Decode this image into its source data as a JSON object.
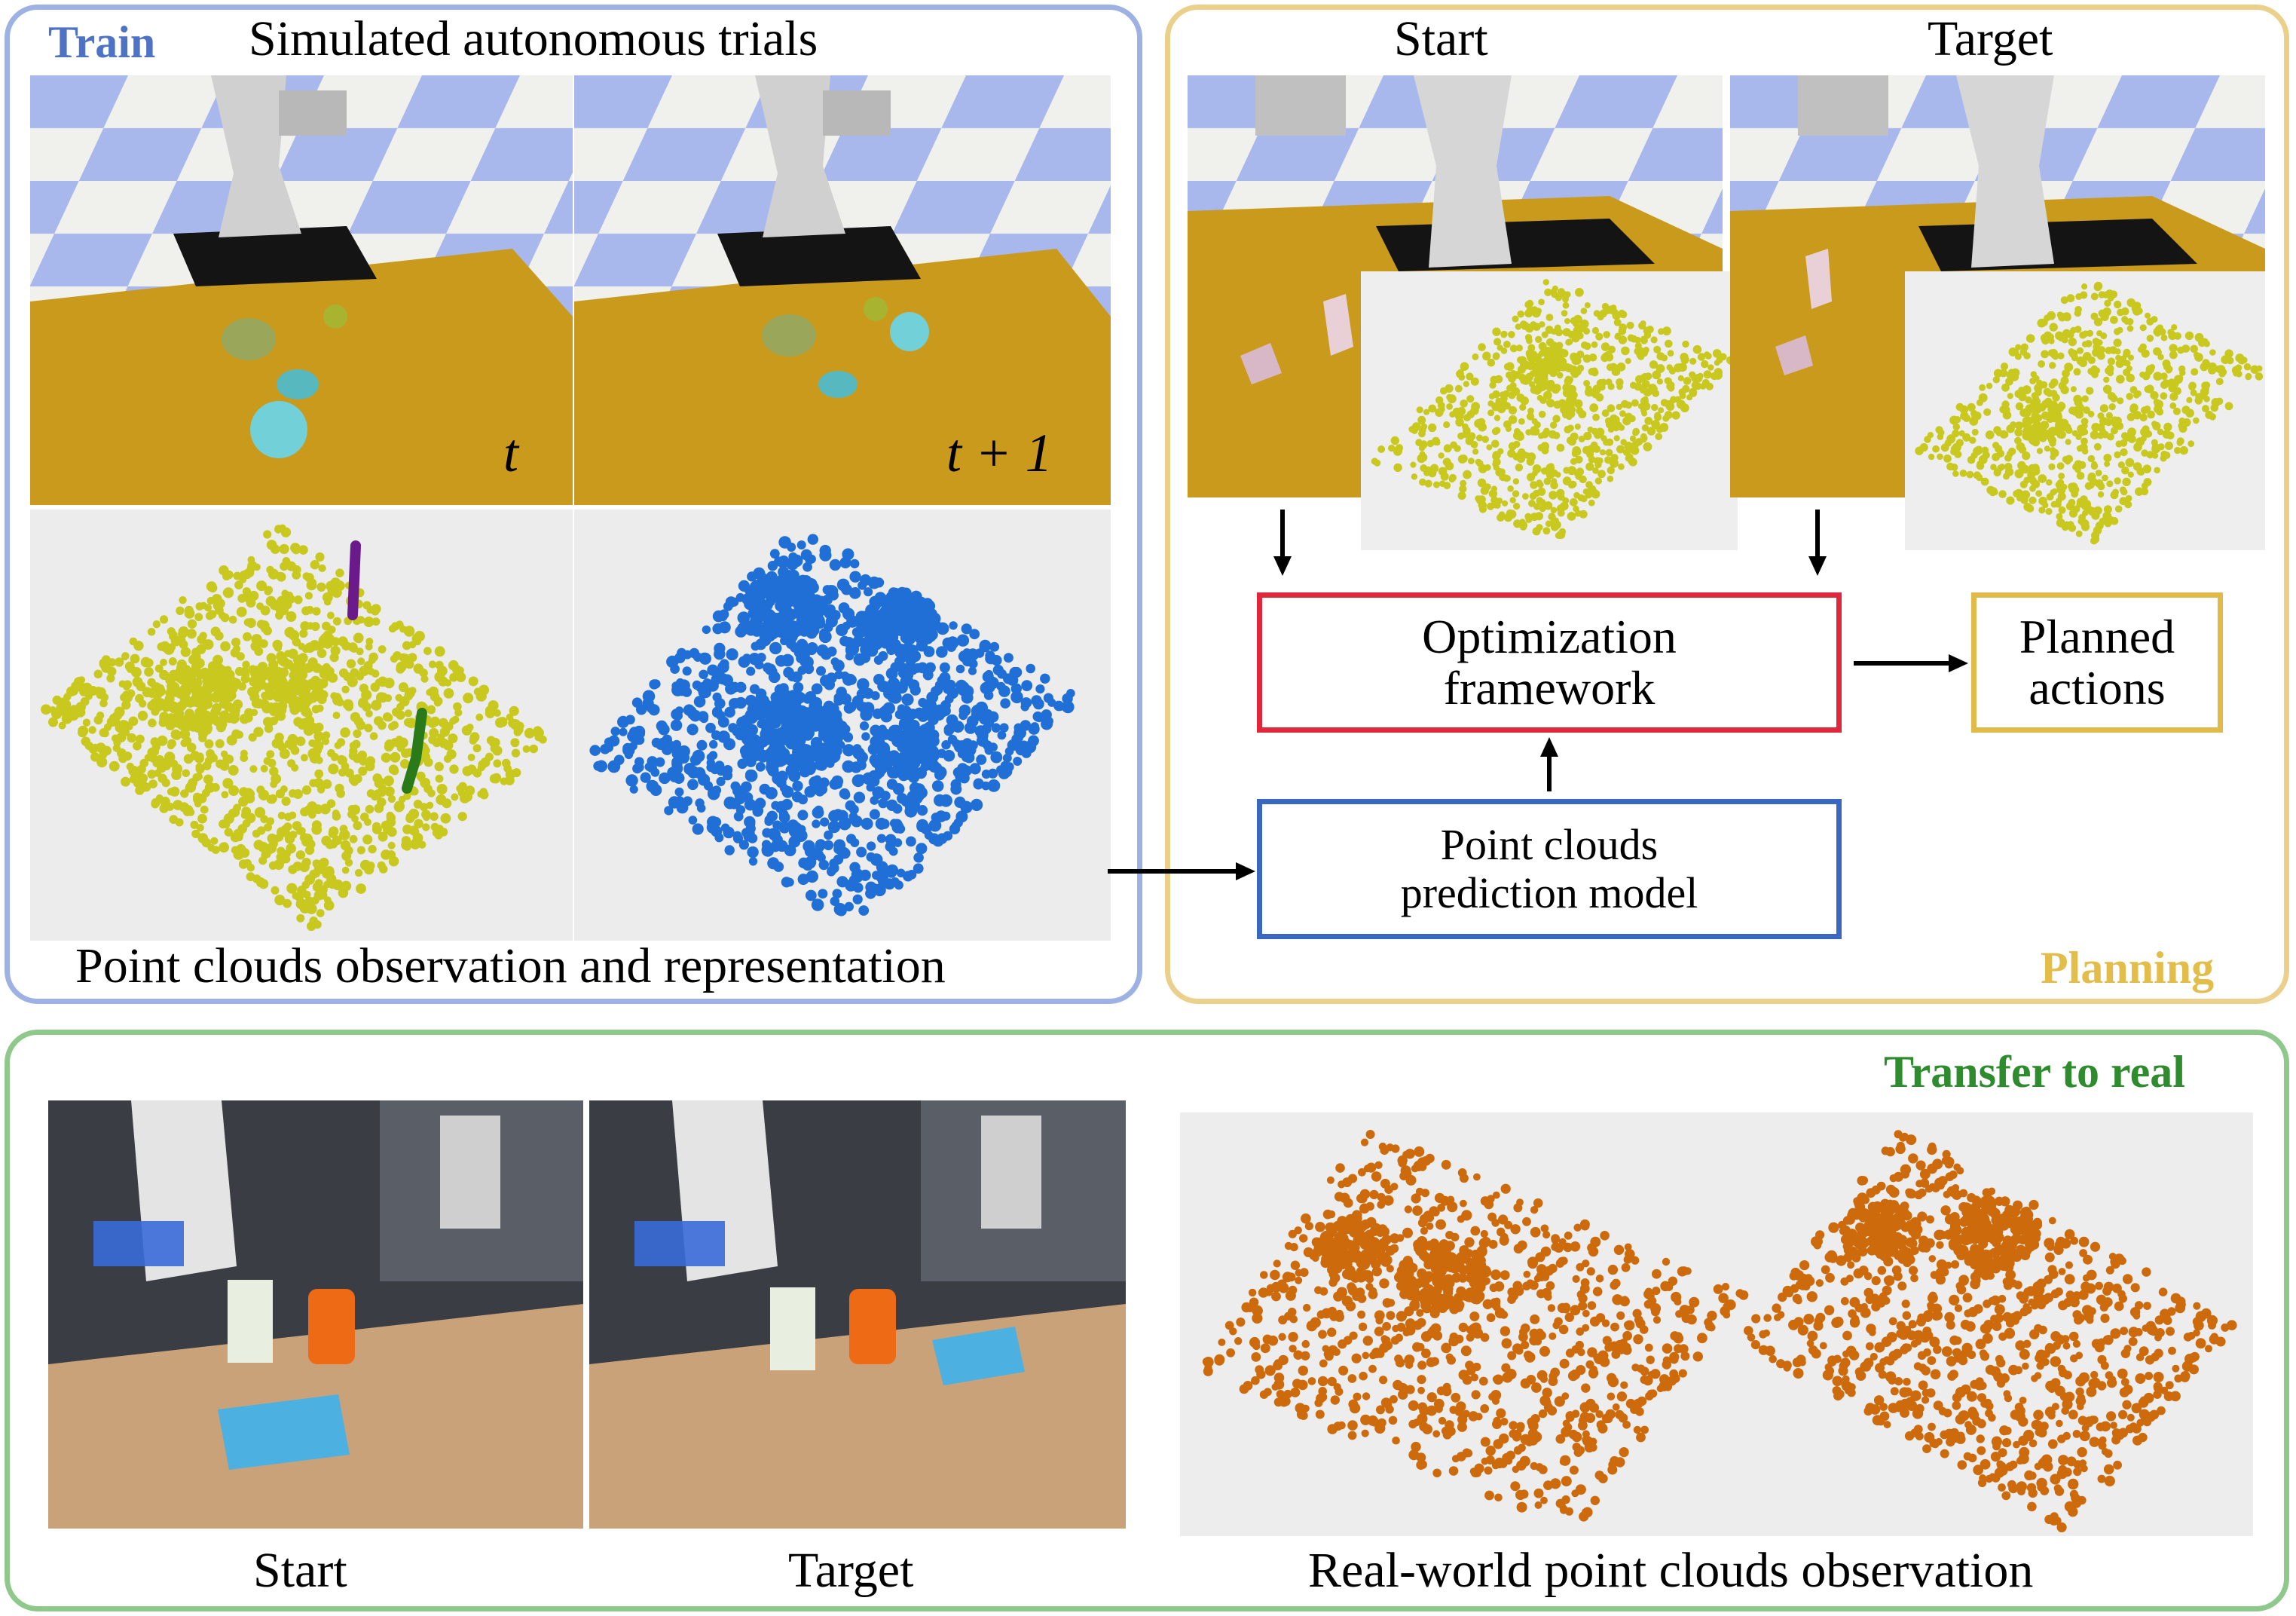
{
  "train": {
    "tag": "Train",
    "heading": "Simulated autonomous trials",
    "step_t": "t",
    "step_t1": "t + 1",
    "caption": "Point clouds observation and representation"
  },
  "planning": {
    "tag": "Planning",
    "start_label": "Start",
    "target_label": "Target",
    "optimization_box": [
      "Optimization",
      "framework"
    ],
    "prediction_box": [
      "Point clouds",
      "prediction model"
    ],
    "actions_box": [
      "Planned",
      "actions"
    ]
  },
  "real": {
    "tag": "Transfer to real",
    "start_label": "Start",
    "target_label": "Target",
    "caption": "Real-world point clouds observation"
  },
  "colors": {
    "train_border": "#9db2e2",
    "train_tag": "#4f73c4",
    "planning_border": "#ead08a",
    "planning_tag": "#e3bd4a",
    "real_border": "#8ec88a",
    "real_tag": "#2e8b2e",
    "optimization_border": "#e0283c",
    "prediction_border": "#3a68c0",
    "actions_border": "#e0bb4a",
    "cloud_yellow": "#c8c81e",
    "cloud_blue": "#1f6fd6",
    "cloud_orange": "#cc6a0c"
  }
}
